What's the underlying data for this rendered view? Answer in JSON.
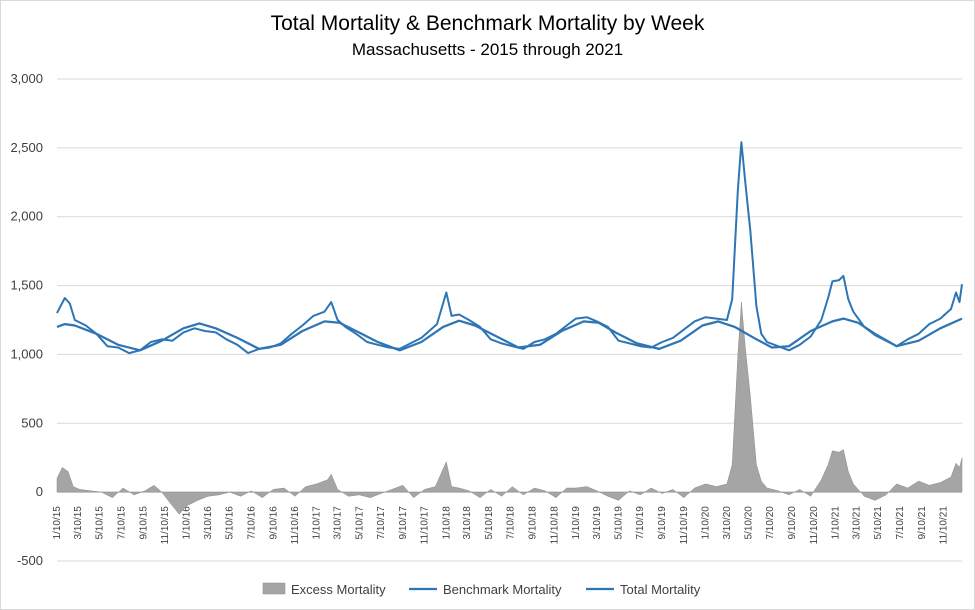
{
  "chart_data": {
    "type": "line",
    "title": "Total Mortality & Benchmark Mortality by Week",
    "subtitle": "Massachusetts - 2015 through 2021",
    "xlabel": "",
    "ylabel": "",
    "ylim": [
      -500,
      3000
    ],
    "y_ticks": [
      "-500",
      "0",
      "500",
      "1,000",
      "1,500",
      "2,000",
      "2,500",
      "3,000"
    ],
    "y_tick_values": [
      -500,
      0,
      500,
      1000,
      1500,
      2000,
      2500,
      3000
    ],
    "x_tick_labels": [
      "1/10/15",
      "3/10/15",
      "5/10/15",
      "7/10/15",
      "9/10/15",
      "11/10/15",
      "1/10/16",
      "3/10/16",
      "5/10/16",
      "7/10/16",
      "9/10/16",
      "11/10/16",
      "1/10/17",
      "3/10/17",
      "5/10/17",
      "7/10/17",
      "9/10/17",
      "11/10/17",
      "1/10/18",
      "3/10/18",
      "5/10/18",
      "7/10/18",
      "9/10/18",
      "11/10/18",
      "1/10/19",
      "3/10/19",
      "5/10/19",
      "7/10/19",
      "9/10/19",
      "11/10/19",
      "1/10/20",
      "3/10/20",
      "5/10/20",
      "7/10/20",
      "9/10/20",
      "11/10/20",
      "1/10/21",
      "3/10/21",
      "5/10/21",
      "7/10/21",
      "9/10/21",
      "11/10/21"
    ],
    "x_range": [
      "1/10/15",
      "1/1/22"
    ],
    "grid": "horizontal",
    "legend_position": "bottom",
    "legend": [
      "Excess Mortality",
      "Benchmark Mortality",
      "Total Mortality"
    ],
    "series": [
      {
        "name": "Total Mortality",
        "type": "line",
        "color": "#2e75b6",
        "points": [
          [
            "1/10/15",
            1300
          ],
          [
            "2/1/15",
            1410
          ],
          [
            "2/15/15",
            1370
          ],
          [
            "3/1/15",
            1250
          ],
          [
            "4/1/15",
            1210
          ],
          [
            "5/1/15",
            1150
          ],
          [
            "6/1/15",
            1060
          ],
          [
            "7/1/15",
            1050
          ],
          [
            "8/1/15",
            1010
          ],
          [
            "9/1/15",
            1030
          ],
          [
            "10/1/15",
            1090
          ],
          [
            "11/1/15",
            1110
          ],
          [
            "12/1/15",
            1100
          ],
          [
            "1/1/16",
            1160
          ],
          [
            "2/1/16",
            1190
          ],
          [
            "3/1/16",
            1170
          ],
          [
            "4/1/16",
            1160
          ],
          [
            "5/1/16",
            1110
          ],
          [
            "6/1/16",
            1070
          ],
          [
            "7/1/16",
            1010
          ],
          [
            "8/1/16",
            1040
          ],
          [
            "9/1/16",
            1050
          ],
          [
            "10/1/16",
            1080
          ],
          [
            "11/1/16",
            1150
          ],
          [
            "12/1/16",
            1210
          ],
          [
            "1/1/17",
            1280
          ],
          [
            "2/1/17",
            1310
          ],
          [
            "2/20/17",
            1380
          ],
          [
            "3/10/17",
            1250
          ],
          [
            "4/1/17",
            1200
          ],
          [
            "5/1/17",
            1150
          ],
          [
            "6/1/17",
            1090
          ],
          [
            "7/1/17",
            1070
          ],
          [
            "8/1/17",
            1050
          ],
          [
            "9/1/17",
            1040
          ],
          [
            "10/1/17",
            1080
          ],
          [
            "11/1/17",
            1120
          ],
          [
            "12/15/17",
            1220
          ],
          [
            "1/10/18",
            1450
          ],
          [
            "1/25/18",
            1280
          ],
          [
            "2/15/18",
            1290
          ],
          [
            "3/15/18",
            1250
          ],
          [
            "4/15/18",
            1200
          ],
          [
            "5/15/18",
            1110
          ],
          [
            "6/15/18",
            1080
          ],
          [
            "7/15/18",
            1060
          ],
          [
            "8/15/18",
            1040
          ],
          [
            "9/15/18",
            1090
          ],
          [
            "10/15/18",
            1110
          ],
          [
            "11/15/18",
            1150
          ],
          [
            "12/15/18",
            1210
          ],
          [
            "1/10/19",
            1260
          ],
          [
            "2/10/19",
            1270
          ],
          [
            "3/10/19",
            1240
          ],
          [
            "4/10/19",
            1200
          ],
          [
            "5/10/19",
            1100
          ],
          [
            "6/10/19",
            1080
          ],
          [
            "7/10/19",
            1060
          ],
          [
            "8/10/19",
            1050
          ],
          [
            "9/10/19",
            1090
          ],
          [
            "10/10/19",
            1120
          ],
          [
            "11/10/19",
            1180
          ],
          [
            "12/10/19",
            1240
          ],
          [
            "1/10/20",
            1270
          ],
          [
            "2/10/20",
            1260
          ],
          [
            "3/10/20",
            1250
          ],
          [
            "3/25/20",
            1400
          ],
          [
            "4/10/20",
            2200
          ],
          [
            "4/20/20",
            2540
          ],
          [
            "5/1/20",
            2250
          ],
          [
            "5/15/20",
            1900
          ],
          [
            "6/1/20",
            1350
          ],
          [
            "6/15/20",
            1150
          ],
          [
            "7/1/20",
            1090
          ],
          [
            "8/1/20",
            1060
          ],
          [
            "9/1/20",
            1030
          ],
          [
            "10/1/20",
            1070
          ],
          [
            "11/1/20",
            1130
          ],
          [
            "12/1/20",
            1250
          ],
          [
            "12/20/20",
            1410
          ],
          [
            "1/1/21",
            1530
          ],
          [
            "1/20/21",
            1540
          ],
          [
            "2/1/21",
            1570
          ],
          [
            "2/15/21",
            1400
          ],
          [
            "3/1/21",
            1310
          ],
          [
            "4/1/21",
            1200
          ],
          [
            "5/1/21",
            1140
          ],
          [
            "6/1/21",
            1100
          ],
          [
            "7/1/21",
            1060
          ],
          [
            "8/1/21",
            1110
          ],
          [
            "9/1/21",
            1150
          ],
          [
            "10/1/21",
            1220
          ],
          [
            "11/1/21",
            1260
          ],
          [
            "12/1/21",
            1330
          ],
          [
            "12/15/21",
            1450
          ],
          [
            "12/25/21",
            1380
          ],
          [
            "1/1/22",
            1510
          ]
        ]
      },
      {
        "name": "Benchmark Mortality",
        "type": "line",
        "color": "#2e75b6",
        "points": [
          [
            "1/10/15",
            1200
          ],
          [
            "2/1/15",
            1220
          ],
          [
            "3/1/15",
            1210
          ],
          [
            "5/1/15",
            1150
          ],
          [
            "7/1/15",
            1070
          ],
          [
            "9/1/15",
            1030
          ],
          [
            "11/1/15",
            1100
          ],
          [
            "1/1/16",
            1190
          ],
          [
            "2/15/16",
            1225
          ],
          [
            "4/1/16",
            1190
          ],
          [
            "6/1/16",
            1120
          ],
          [
            "8/1/16",
            1040
          ],
          [
            "10/1/16",
            1070
          ],
          [
            "12/1/16",
            1170
          ],
          [
            "2/1/17",
            1240
          ],
          [
            "3/15/17",
            1230
          ],
          [
            "5/1/17",
            1170
          ],
          [
            "7/1/17",
            1090
          ],
          [
            "9/1/17",
            1030
          ],
          [
            "11/1/17",
            1090
          ],
          [
            "1/1/18",
            1200
          ],
          [
            "2/15/18",
            1245
          ],
          [
            "4/1/18",
            1210
          ],
          [
            "6/1/18",
            1130
          ],
          [
            "8/1/18",
            1050
          ],
          [
            "10/1/18",
            1070
          ],
          [
            "12/1/18",
            1170
          ],
          [
            "2/1/19",
            1240
          ],
          [
            "3/15/19",
            1230
          ],
          [
            "5/1/19",
            1160
          ],
          [
            "7/1/19",
            1080
          ],
          [
            "9/1/19",
            1040
          ],
          [
            "11/1/19",
            1100
          ],
          [
            "1/1/20",
            1210
          ],
          [
            "2/15/20",
            1240
          ],
          [
            "4/1/20",
            1200
          ],
          [
            "6/1/20",
            1110
          ],
          [
            "7/15/20",
            1050
          ],
          [
            "9/1/20",
            1060
          ],
          [
            "11/1/20",
            1170
          ],
          [
            "1/1/21",
            1240
          ],
          [
            "2/1/21",
            1260
          ],
          [
            "3/15/21",
            1230
          ],
          [
            "5/1/21",
            1150
          ],
          [
            "7/1/21",
            1060
          ],
          [
            "9/1/21",
            1100
          ],
          [
            "11/1/21",
            1190
          ],
          [
            "1/1/22",
            1260
          ]
        ]
      },
      {
        "name": "Excess Mortality",
        "type": "area",
        "color": "#a5a5a5",
        "points": [
          [
            "1/10/15",
            100
          ],
          [
            "1/25/15",
            180
          ],
          [
            "2/10/15",
            150
          ],
          [
            "2/25/15",
            40
          ],
          [
            "3/15/15",
            20
          ],
          [
            "4/15/15",
            10
          ],
          [
            "5/15/15",
            0
          ],
          [
            "6/15/15",
            -40
          ],
          [
            "7/15/15",
            30
          ],
          [
            "8/15/15",
            -20
          ],
          [
            "9/15/15",
            10
          ],
          [
            "10/10/15",
            50
          ],
          [
            "11/1/15",
            0
          ],
          [
            "11/25/15",
            -80
          ],
          [
            "12/20/15",
            -160
          ],
          [
            "1/10/16",
            -100
          ],
          [
            "2/10/16",
            -60
          ],
          [
            "3/10/16",
            -30
          ],
          [
            "4/10/16",
            -20
          ],
          [
            "5/10/16",
            0
          ],
          [
            "6/10/16",
            -30
          ],
          [
            "7/10/16",
            10
          ],
          [
            "8/10/16",
            -40
          ],
          [
            "9/10/16",
            20
          ],
          [
            "10/10/16",
            30
          ],
          [
            "11/10/16",
            -30
          ],
          [
            "12/10/16",
            40
          ],
          [
            "1/10/17",
            60
          ],
          [
            "2/10/17",
            90
          ],
          [
            "2/20/17",
            130
          ],
          [
            "3/10/17",
            20
          ],
          [
            "4/10/17",
            -30
          ],
          [
            "5/10/17",
            -20
          ],
          [
            "6/10/17",
            -40
          ],
          [
            "7/10/17",
            -10
          ],
          [
            "8/10/17",
            20
          ],
          [
            "9/10/17",
            50
          ],
          [
            "10/10/17",
            -40
          ],
          [
            "11/10/17",
            20
          ],
          [
            "12/10/17",
            40
          ],
          [
            "1/10/18",
            220
          ],
          [
            "1/25/18",
            40
          ],
          [
            "2/15/18",
            30
          ],
          [
            "3/15/18",
            10
          ],
          [
            "4/15/18",
            -40
          ],
          [
            "5/15/18",
            20
          ],
          [
            "6/15/18",
            -30
          ],
          [
            "7/15/18",
            40
          ],
          [
            "8/15/18",
            -20
          ],
          [
            "9/15/18",
            30
          ],
          [
            "10/15/18",
            10
          ],
          [
            "11/15/18",
            -40
          ],
          [
            "12/15/18",
            30
          ],
          [
            "1/10/19",
            30
          ],
          [
            "2/10/19",
            40
          ],
          [
            "3/10/19",
            10
          ],
          [
            "4/10/19",
            -30
          ],
          [
            "5/10/19",
            -60
          ],
          [
            "6/10/19",
            10
          ],
          [
            "7/10/19",
            -20
          ],
          [
            "8/10/19",
            30
          ],
          [
            "9/10/19",
            -10
          ],
          [
            "10/10/19",
            20
          ],
          [
            "11/10/19",
            -40
          ],
          [
            "12/10/19",
            30
          ],
          [
            "1/10/20",
            60
          ],
          [
            "2/10/20",
            40
          ],
          [
            "3/10/20",
            60
          ],
          [
            "3/25/20",
            200
          ],
          [
            "4/10/20",
            1000
          ],
          [
            "4/20/20",
            1380
          ],
          [
            "5/1/20",
            1050
          ],
          [
            "5/15/20",
            700
          ],
          [
            "6/1/20",
            200
          ],
          [
            "6/15/20",
            80
          ],
          [
            "7/1/20",
            30
          ],
          [
            "8/1/20",
            10
          ],
          [
            "9/1/20",
            -20
          ],
          [
            "10/1/20",
            20
          ],
          [
            "11/1/20",
            -30
          ],
          [
            "12/1/20",
            90
          ],
          [
            "12/20/20",
            200
          ],
          [
            "1/1/21",
            300
          ],
          [
            "1/20/21",
            290
          ],
          [
            "2/1/21",
            310
          ],
          [
            "2/15/21",
            150
          ],
          [
            "3/1/21",
            60
          ],
          [
            "4/1/21",
            -30
          ],
          [
            "5/1/21",
            -60
          ],
          [
            "6/1/21",
            -20
          ],
          [
            "7/1/21",
            60
          ],
          [
            "8/1/21",
            30
          ],
          [
            "9/1/21",
            80
          ],
          [
            "10/1/21",
            50
          ],
          [
            "11/1/21",
            70
          ],
          [
            "12/1/21",
            110
          ],
          [
            "12/15/21",
            210
          ],
          [
            "12/25/21",
            180
          ],
          [
            "1/1/22",
            250
          ]
        ]
      }
    ]
  }
}
